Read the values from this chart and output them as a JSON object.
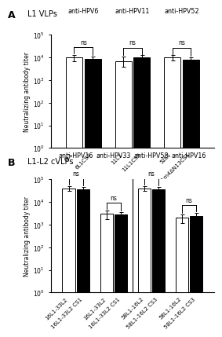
{
  "panel_A": {
    "panel_label": "A",
    "panel_title": "L1 VLPs",
    "ylabel": "Neutralizing antibody titer",
    "ylim": [
      1.0,
      100000.0
    ],
    "yticks": [
      1.0,
      10.0,
      100.0,
      1000.0,
      10000.0,
      100000.0
    ],
    "groups": [
      {
        "label": "anti-HPV6",
        "bars": [
          {
            "x_label": "6L1",
            "value": 10000,
            "err_lo": 3000,
            "err_hi": 3000,
            "color": "white"
          },
          {
            "x_label": "6L1CS4",
            "value": 9000,
            "err_lo": 2000,
            "err_hi": 2000,
            "color": "black"
          }
        ],
        "ns_label": "ns"
      },
      {
        "label": "anti-HPV11",
        "bars": [
          {
            "x_label": "11L1",
            "value": 7000,
            "err_lo": 3000,
            "err_hi": 4000,
            "color": "white"
          },
          {
            "x_label": "11L1CS3",
            "value": 10000,
            "err_lo": 2500,
            "err_hi": 2500,
            "color": "black"
          }
        ],
        "ns_label": "ns"
      },
      {
        "label": "anti-HPV52",
        "bars": [
          {
            "x_label": "52L1",
            "value": 10000,
            "err_lo": 2500,
            "err_hi": 2500,
            "color": "white"
          },
          {
            "x_label": "52L1m4ΔN13CS1",
            "value": 8000,
            "err_lo": 2500,
            "err_hi": 2500,
            "color": "black"
          }
        ],
        "ns_label": "ns"
      }
    ]
  },
  "panel_B": {
    "panel_label": "B",
    "panel_title": "L1-L2 cVLPs",
    "ylabel": "Neutralizing antibody titer",
    "ylim": [
      1.0,
      100000.0
    ],
    "yticks": [
      1.0,
      10.0,
      100.0,
      1000.0,
      10000.0,
      100000.0
    ],
    "divider_after_group": 1,
    "groups": [
      {
        "label": "anti-HPV16",
        "bars": [
          {
            "x_label": "16L1-33L2",
            "value": 40000,
            "err_lo": 10000,
            "err_hi": 10000,
            "color": "white"
          },
          {
            "x_label": "16L1-33L2 CS1",
            "value": 38000,
            "err_lo": 9000,
            "err_hi": 9000,
            "color": "black"
          }
        ],
        "ns_label": "ns"
      },
      {
        "label": "anti-HPV33",
        "bars": [
          {
            "x_label": "16L1-33L2",
            "value": 3000,
            "err_lo": 1200,
            "err_hi": 1200,
            "color": "white"
          },
          {
            "x_label": "16L1-33L2 CS1",
            "value": 2800,
            "err_lo": 900,
            "err_hi": 900,
            "color": "black"
          }
        ],
        "ns_label": "ns"
      },
      {
        "label": "anti-HPV58",
        "bars": [
          {
            "x_label": "58L1-16L2",
            "value": 40000,
            "err_lo": 10000,
            "err_hi": 10000,
            "color": "white"
          },
          {
            "x_label": "58L1-16L2 CS3",
            "value": 38000,
            "err_lo": 9000,
            "err_hi": 9000,
            "color": "black"
          }
        ],
        "ns_label": "ns"
      },
      {
        "label": "anti-HPV16",
        "bars": [
          {
            "x_label": "58L1-16L2",
            "value": 2000,
            "err_lo": 800,
            "err_hi": 800,
            "color": "white"
          },
          {
            "x_label": "58L1-16L2 CS3",
            "value": 2500,
            "err_lo": 900,
            "err_hi": 900,
            "color": "black"
          }
        ],
        "ns_label": "ns"
      }
    ]
  }
}
